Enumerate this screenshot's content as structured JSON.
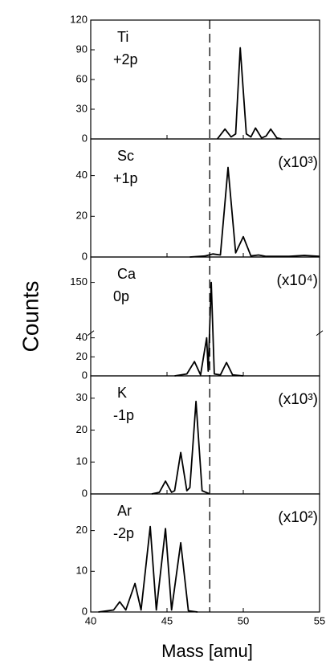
{
  "chart_data": {
    "type": "line",
    "xlabel": "Mass [amu]",
    "ylabel": "Counts",
    "xlim": [
      40,
      55
    ],
    "xticks": [
      40,
      45,
      50,
      55
    ],
    "reference_x": 47.8,
    "color": "#000000",
    "panels": [
      {
        "label": "Ti",
        "sublabel": "+2p",
        "x": [
          48.3,
          48.8,
          49.2,
          49.5,
          49.8,
          50.2,
          50.5,
          50.8,
          51.2,
          51.5,
          51.8,
          52.2,
          52.5
        ],
        "values": [
          0,
          10,
          2,
          5,
          92,
          5,
          2,
          11,
          1,
          3,
          10,
          1,
          0
        ],
        "ylim": [
          0,
          120
        ],
        "yticks": [
          0,
          30,
          60,
          90,
          120
        ]
      },
      {
        "label": "Sc",
        "sublabel": "+1p",
        "multiplier": "(x10³)",
        "x": [
          46.5,
          47.5,
          48.0,
          48.5,
          49.0,
          49.5,
          50.0,
          50.5,
          51.0,
          51.5,
          53.0,
          54.0,
          55.0
        ],
        "values": [
          0,
          0.5,
          1.5,
          1,
          44,
          2,
          10,
          0.5,
          1,
          0.3,
          0.3,
          0.8,
          0.3
        ],
        "ylim": [
          0,
          58
        ],
        "yticks": [
          0,
          20,
          40
        ]
      },
      {
        "label": "Ca",
        "sublabel": "0p",
        "multiplier": "(x10⁴)",
        "x": [
          45.5,
          46.3,
          46.8,
          47.2,
          47.6,
          47.7,
          47.9,
          48.1,
          48.5,
          48.9,
          49.3,
          50.0
        ],
        "values": [
          0,
          2,
          15,
          1,
          40,
          5,
          150,
          2,
          1,
          14,
          1,
          0
        ],
        "ylim": [
          0,
          155
        ],
        "ybreak": [
          45,
          140
        ],
        "yticks": [
          0,
          20,
          40,
          150
        ]
      },
      {
        "label": "K",
        "sublabel": "-1p",
        "multiplier": "(x10³)",
        "x": [
          44.0,
          44.5,
          44.9,
          45.3,
          45.5,
          45.9,
          46.3,
          46.5,
          46.9,
          47.3,
          47.8
        ],
        "values": [
          0,
          0.5,
          4,
          0.5,
          1,
          13,
          1,
          2,
          29,
          1,
          0
        ],
        "ylim": [
          0,
          37
        ],
        "yticks": [
          0,
          10,
          20,
          30
        ]
      },
      {
        "label": "Ar",
        "sublabel": "-2p",
        "multiplier": "(x10²)",
        "x": [
          40.5,
          41.5,
          41.9,
          42.3,
          42.9,
          43.3,
          43.9,
          44.3,
          44.9,
          45.3,
          45.9,
          46.4,
          47.0
        ],
        "values": [
          0,
          0.5,
          2.5,
          0.5,
          7,
          0.5,
          21,
          0.5,
          20.5,
          0.5,
          17,
          0.3,
          0
        ],
        "ylim": [
          0,
          29
        ],
        "yticks": [
          0,
          10,
          20
        ]
      }
    ]
  }
}
